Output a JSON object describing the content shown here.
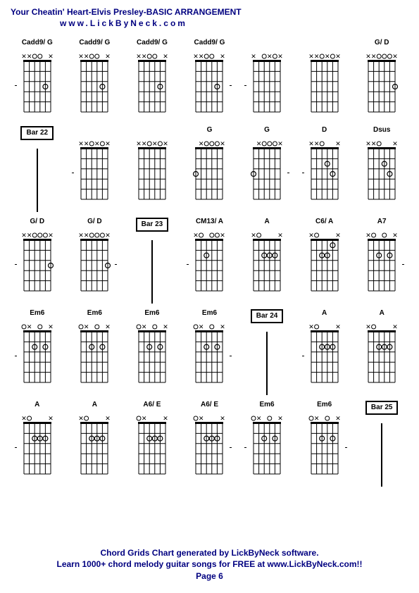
{
  "title": "Your Cheatin' Heart-Elvis Presley-BASIC ARRANGEMENT",
  "subtitle": "www.LickByNeck.com",
  "footer_line1": "Chord Grids Chart generated by LickByNeck software.",
  "footer_line2": "Learn 1000+ chord melody guitar songs for FREE at www.LickByNeck.com!!",
  "footer_line3": "Page 6",
  "colors": {
    "text": "#000080",
    "grid": "#000000",
    "background": "#ffffff"
  },
  "diagram": {
    "strings": 6,
    "frets": 5,
    "width": 54,
    "height": 100
  },
  "rows": [
    [
      {
        "type": "chord",
        "label": "Cadd9/ G",
        "top": [
          "x",
          "x",
          "o",
          "o",
          "",
          "x"
        ],
        "dots": [
          [
            3,
            4
          ]
        ],
        "dashL": true
      },
      {
        "type": "chord",
        "label": "Cadd9/ G",
        "top": [
          "x",
          "x",
          "o",
          "o",
          "",
          "x"
        ],
        "dots": [
          [
            3,
            4
          ]
        ]
      },
      {
        "type": "chord",
        "label": "Cadd9/ G",
        "top": [
          "x",
          "x",
          "o",
          "o",
          "",
          "x"
        ],
        "dots": [
          [
            3,
            4
          ]
        ]
      },
      {
        "type": "chord",
        "label": "Cadd9/ G",
        "top": [
          "x",
          "x",
          "o",
          "o",
          "",
          "x"
        ],
        "dots": [
          [
            3,
            4
          ]
        ],
        "dashR": true
      },
      {
        "type": "chord",
        "label": "",
        "top": [
          "x",
          "",
          "o",
          "x",
          "o",
          "x"
        ],
        "dots": [],
        "dashL": true
      },
      {
        "type": "chord",
        "label": "",
        "top": [
          "x",
          "x",
          "o",
          "x",
          "o",
          "x"
        ],
        "dots": []
      },
      {
        "type": "chord",
        "label": "G/ D",
        "top": [
          "x",
          "x",
          "o",
          "o",
          "o",
          "x"
        ],
        "dots": [
          [
            3,
            5
          ]
        ]
      }
    ],
    [
      {
        "type": "bar",
        "label": "Bar 22"
      },
      {
        "type": "chord",
        "label": "",
        "top": [
          "x",
          "x",
          "o",
          "x",
          "o",
          "x"
        ],
        "dots": [],
        "dashL": true
      },
      {
        "type": "chord",
        "label": "",
        "top": [
          "x",
          "x",
          "o",
          "x",
          "o",
          "x"
        ],
        "dots": []
      },
      {
        "type": "chord",
        "label": "G",
        "top": [
          "",
          "x",
          "o",
          "o",
          "o",
          "x"
        ],
        "dots": [
          [
            3,
            0
          ]
        ]
      },
      {
        "type": "chord",
        "label": "G",
        "top": [
          "",
          "x",
          "o",
          "o",
          "o",
          "x"
        ],
        "dots": [
          [
            3,
            0
          ]
        ],
        "dashR": true
      },
      {
        "type": "chord",
        "label": "D",
        "top": [
          "x",
          "x",
          "o",
          "",
          "",
          "x"
        ],
        "dots": [
          [
            2,
            3
          ],
          [
            3,
            4
          ]
        ],
        "dashL": true
      },
      {
        "type": "chord",
        "label": "Dsus",
        "top": [
          "x",
          "x",
          "o",
          "",
          "",
          "x"
        ],
        "dots": [
          [
            2,
            3
          ],
          [
            3,
            4
          ]
        ]
      }
    ],
    [
      {
        "type": "chord",
        "label": "G/ D",
        "top": [
          "x",
          "x",
          "o",
          "o",
          "o",
          "x"
        ],
        "dots": [
          [
            3,
            5
          ]
        ],
        "dashL": true
      },
      {
        "type": "chord",
        "label": "G/ D",
        "top": [
          "x",
          "x",
          "o",
          "o",
          "o",
          "x"
        ],
        "dots": [
          [
            3,
            5
          ]
        ],
        "dashR": true
      },
      {
        "type": "bar",
        "label": "Bar 23"
      },
      {
        "type": "chord",
        "label": "CM13/ A",
        "top": [
          "x",
          "o",
          "",
          "o",
          "o",
          "x"
        ],
        "dots": [
          [
            2,
            2
          ]
        ],
        "dashL": true
      },
      {
        "type": "chord",
        "label": "A",
        "top": [
          "x",
          "o",
          "",
          "",
          "",
          "x"
        ],
        "dots": [
          [
            2,
            2
          ],
          [
            2,
            3
          ],
          [
            2,
            4
          ]
        ]
      },
      {
        "type": "chord",
        "label": "C6/ A",
        "top": [
          "x",
          "o",
          "",
          "",
          "",
          "x"
        ],
        "dots": [
          [
            2,
            2
          ],
          [
            2,
            3
          ],
          [
            1,
            4
          ]
        ]
      },
      {
        "type": "chord",
        "label": "A7",
        "top": [
          "x",
          "o",
          "",
          "o",
          "",
          "x"
        ],
        "dots": [
          [
            2,
            2
          ],
          [
            2,
            4
          ]
        ],
        "dashR": true
      }
    ],
    [
      {
        "type": "chord",
        "label": "Em6",
        "top": [
          "o",
          "x",
          "",
          "o",
          "",
          "x"
        ],
        "dots": [
          [
            2,
            2
          ],
          [
            2,
            4
          ]
        ],
        "dashL": true
      },
      {
        "type": "chord",
        "label": "Em6",
        "top": [
          "o",
          "x",
          "",
          "o",
          "",
          "x"
        ],
        "dots": [
          [
            2,
            2
          ],
          [
            2,
            4
          ]
        ]
      },
      {
        "type": "chord",
        "label": "Em6",
        "top": [
          "o",
          "x",
          "",
          "o",
          "",
          "x"
        ],
        "dots": [
          [
            2,
            2
          ],
          [
            2,
            4
          ]
        ]
      },
      {
        "type": "chord",
        "label": "Em6",
        "top": [
          "o",
          "x",
          "",
          "o",
          "",
          "x"
        ],
        "dots": [
          [
            2,
            2
          ],
          [
            2,
            4
          ]
        ],
        "dashR": true
      },
      {
        "type": "bar",
        "label": "Bar 24"
      },
      {
        "type": "chord",
        "label": "A",
        "top": [
          "x",
          "o",
          "",
          "",
          "",
          "x"
        ],
        "dots": [
          [
            2,
            2
          ],
          [
            2,
            3
          ],
          [
            2,
            4
          ]
        ],
        "dashL": true
      },
      {
        "type": "chord",
        "label": "A",
        "top": [
          "x",
          "o",
          "",
          "",
          "",
          "x"
        ],
        "dots": [
          [
            2,
            2
          ],
          [
            2,
            3
          ],
          [
            2,
            4
          ]
        ]
      }
    ],
    [
      {
        "type": "chord",
        "label": "A",
        "top": [
          "x",
          "o",
          "",
          "",
          "",
          "x"
        ],
        "dots": [
          [
            2,
            2
          ],
          [
            2,
            3
          ],
          [
            2,
            4
          ]
        ],
        "dashL": true
      },
      {
        "type": "chord",
        "label": "A",
        "top": [
          "x",
          "o",
          "",
          "",
          "",
          "x"
        ],
        "dots": [
          [
            2,
            2
          ],
          [
            2,
            3
          ],
          [
            2,
            4
          ]
        ]
      },
      {
        "type": "chord",
        "label": "A6/ E",
        "top": [
          "o",
          "x",
          "",
          "",
          "",
          "x"
        ],
        "dots": [
          [
            2,
            2
          ],
          [
            2,
            3
          ],
          [
            2,
            4
          ]
        ]
      },
      {
        "type": "chord",
        "label": "A6/ E",
        "top": [
          "o",
          "x",
          "",
          "",
          "",
          "x"
        ],
        "dots": [
          [
            2,
            2
          ],
          [
            2,
            3
          ],
          [
            2,
            4
          ]
        ],
        "dashR": true
      },
      {
        "type": "chord",
        "label": "Em6",
        "top": [
          "o",
          "x",
          "",
          "o",
          "",
          "x"
        ],
        "dots": [
          [
            2,
            2
          ],
          [
            2,
            4
          ]
        ],
        "dashL": true
      },
      {
        "type": "chord",
        "label": "Em6",
        "top": [
          "o",
          "x",
          "",
          "o",
          "",
          "x"
        ],
        "dots": [
          [
            2,
            2
          ],
          [
            2,
            4
          ]
        ],
        "dashR": true
      },
      {
        "type": "bar",
        "label": "Bar 25"
      }
    ]
  ]
}
